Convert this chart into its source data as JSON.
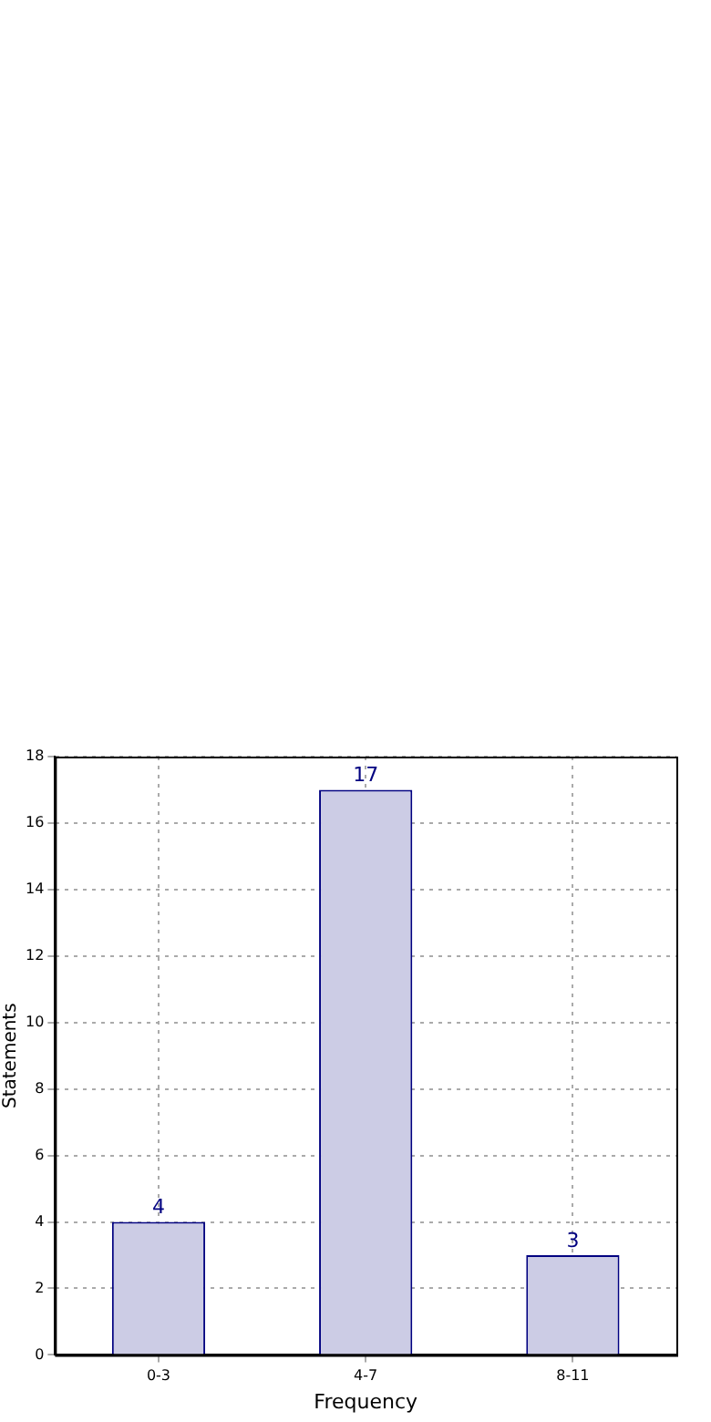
{
  "chart_data": {
    "type": "bar",
    "xlabel": "Frequency",
    "ylabel": "Statements",
    "categories": [
      "0-3",
      "4-7",
      "8-11"
    ],
    "values": [
      4,
      17,
      3
    ],
    "color": "#cccce5",
    "ylim": [
      0,
      18
    ],
    "yticks": [
      0,
      2,
      4,
      6,
      8,
      10,
      12,
      14,
      16,
      18
    ],
    "grid": true,
    "data_labels": true,
    "legend": false
  }
}
